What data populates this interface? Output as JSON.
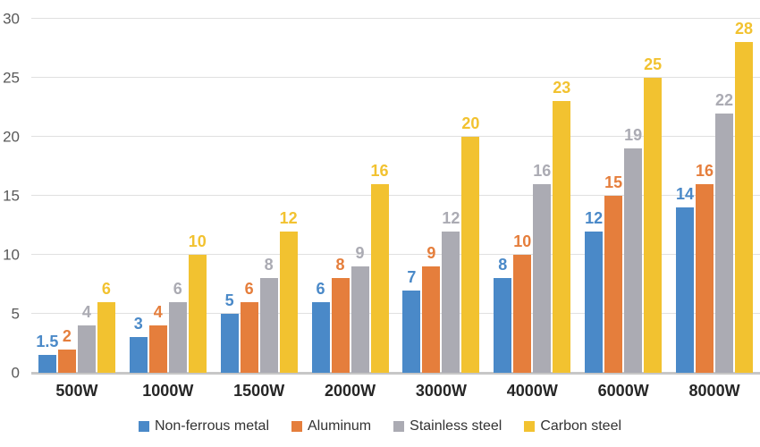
{
  "chart_data": {
    "type": "bar",
    "title": "",
    "xlabel": "",
    "ylabel": "",
    "categories": [
      "500W",
      "1000W",
      "1500W",
      "2000W",
      "3000W",
      "4000W",
      "6000W",
      "8000W"
    ],
    "series": [
      {
        "name": "Non-ferrous metal",
        "color": "#4A89C8",
        "values": [
          1.5,
          3,
          5,
          6,
          7,
          8,
          12,
          14
        ]
      },
      {
        "name": "Aluminum",
        "color": "#E57E3C",
        "values": [
          2,
          4,
          6,
          8,
          9,
          10,
          15,
          16
        ]
      },
      {
        "name": "Stainless steel",
        "color": "#ABABB3",
        "values": [
          4,
          6,
          8,
          9,
          12,
          16,
          19,
          22
        ]
      },
      {
        "name": "Carbon steel",
        "color": "#F2C230",
        "values": [
          6,
          10,
          12,
          16,
          20,
          23,
          25,
          28
        ]
      }
    ],
    "ylim": [
      0,
      30
    ],
    "yticks": [
      0,
      5,
      10,
      15,
      20,
      25,
      30
    ],
    "grid": "horizontal",
    "legend_position": "bottom",
    "value_labels": "above-bars, colored like series",
    "colors": {
      "gridline": "#e0e0e0",
      "axis_line": "#c7c7c7",
      "y_tick_text": "#595959",
      "x_tick_text": "#262626",
      "legend_text": "#333333",
      "background": "#ffffff"
    }
  }
}
